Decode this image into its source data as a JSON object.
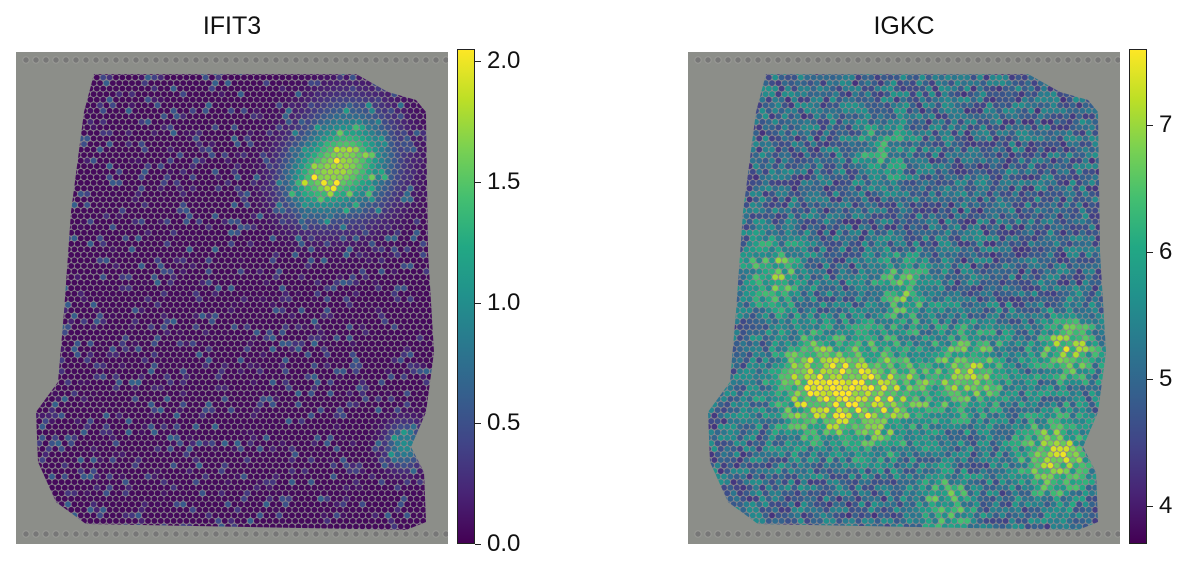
{
  "chart_data": [
    {
      "type": "heatmap",
      "title": "IFIT3",
      "colormap": "viridis",
      "colorbar": {
        "min": 0.0,
        "max": 2.05,
        "ticks": [
          "0.0",
          "0.5",
          "1.0",
          "1.5",
          "2.0"
        ],
        "tick_values": [
          0.0,
          0.5,
          1.0,
          1.5,
          2.0
        ]
      },
      "hotspots": [
        {
          "cx": 0.77,
          "cy": 0.22,
          "sigma": 0.07,
          "value": 1.6
        },
        {
          "cx": 0.68,
          "cy": 0.27,
          "sigma": 0.05,
          "value": 0.9
        },
        {
          "cx": 0.9,
          "cy": 0.8,
          "sigma": 0.03,
          "value": 1.0
        }
      ],
      "base_value": 0.05,
      "noise_value": 0.6
    },
    {
      "type": "heatmap",
      "title": "IGKC",
      "colormap": "viridis",
      "colorbar": {
        "min": 3.7,
        "max": 7.6,
        "ticks": [
          "4",
          "5",
          "6",
          "7"
        ],
        "tick_values": [
          4,
          5,
          6,
          7
        ]
      },
      "hotspots": [
        {
          "cx": 0.3,
          "cy": 0.68,
          "sigma": 0.08,
          "value": 6.9
        },
        {
          "cx": 0.45,
          "cy": 0.7,
          "sigma": 0.08,
          "value": 6.7
        },
        {
          "cx": 0.65,
          "cy": 0.65,
          "sigma": 0.07,
          "value": 6.5
        },
        {
          "cx": 0.88,
          "cy": 0.6,
          "sigma": 0.05,
          "value": 6.8
        },
        {
          "cx": 0.85,
          "cy": 0.82,
          "sigma": 0.06,
          "value": 7.0
        },
        {
          "cx": 0.2,
          "cy": 0.45,
          "sigma": 0.05,
          "value": 6.4
        },
        {
          "cx": 0.5,
          "cy": 0.48,
          "sigma": 0.05,
          "value": 6.3
        },
        {
          "cx": 0.6,
          "cy": 0.92,
          "sigma": 0.05,
          "value": 6.2
        },
        {
          "cx": 0.45,
          "cy": 0.2,
          "sigma": 0.05,
          "value": 5.9
        }
      ],
      "base_value": 4.9,
      "noise_value": 0.9
    }
  ]
}
